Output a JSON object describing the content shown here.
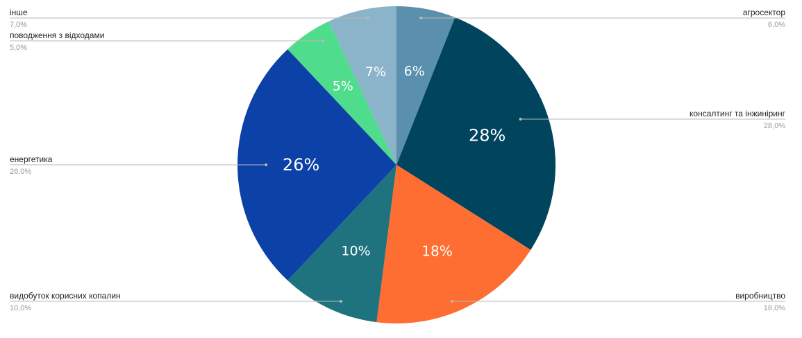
{
  "chart_data": {
    "type": "pie",
    "title": "",
    "legend": "none",
    "start_angle_deg": 0,
    "direction": "clockwise",
    "slices": [
      {
        "label": "агросектор",
        "value": 6.0,
        "slice_label": "6%",
        "callout_value": "6,0%",
        "color": "#5a8fad",
        "callout": {
          "side": "right",
          "row": 0
        }
      },
      {
        "label": "консалтинг та інжиніринг",
        "value": 28.0,
        "slice_label": "28%",
        "callout_value": "28,0%",
        "color": "#01445e",
        "callout": {
          "side": "right",
          "row": 1
        }
      },
      {
        "label": "виробництво",
        "value": 18.0,
        "slice_label": "18%",
        "callout_value": "18,0%",
        "color": "#fe6e32",
        "callout": {
          "side": "right",
          "row": 2
        }
      },
      {
        "label": "видобуток корисних копалин",
        "value": 10.0,
        "slice_label": "10%",
        "callout_value": "10,0%",
        "color": "#1e737f",
        "callout": {
          "side": "left",
          "row": 3
        }
      },
      {
        "label": "енергетика",
        "value": 26.0,
        "slice_label": "26%",
        "callout_value": "26,0%",
        "color": "#0c41a7",
        "callout": {
          "side": "left",
          "row": 2
        }
      },
      {
        "label": "поводження з відходами",
        "value": 5.0,
        "slice_label": "5%",
        "callout_value": "5,0%",
        "color": "#4fdc8c",
        "callout": {
          "side": "left",
          "row": 1
        }
      },
      {
        "label": "інше",
        "value": 7.0,
        "slice_label": "7%",
        "callout_value": "7,0%",
        "color": "#8bb3c9",
        "callout": {
          "side": "left",
          "row": 0
        }
      }
    ]
  }
}
